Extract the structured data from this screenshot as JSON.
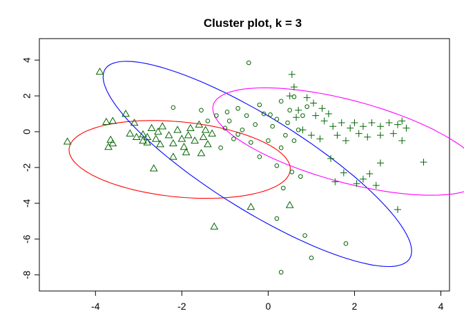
{
  "chart_data": {
    "type": "scatter",
    "title": "Cluster plot, k = 3",
    "xlabel": "",
    "ylabel": "",
    "xlim": [
      -5.3,
      4.2
    ],
    "ylim": [
      -8.9,
      5.2
    ],
    "xticks": [
      -4,
      -2,
      0,
      2,
      4
    ],
    "yticks": [
      4,
      2,
      0,
      -2,
      -4,
      -6,
      -8
    ],
    "grid": false,
    "legend": "none",
    "point_color": "#006400",
    "ellipses": [
      {
        "cluster": 1,
        "color": "#ff0000",
        "center": [
          -2.05,
          -1.55
        ],
        "semi_major": 2.7,
        "semi_minor": 2.0,
        "angle_deg": -28
      },
      {
        "cluster": 2,
        "color": "#0000ff",
        "center": [
          -0.25,
          -1.8
        ],
        "semi_major": 6.55,
        "semi_minor": 1.65,
        "angle_deg": -60
      },
      {
        "cluster": 3,
        "color": "#ff00ff",
        "center": [
          1.85,
          -0.55
        ],
        "semi_major": 3.9,
        "semi_minor": 1.9,
        "angle_deg": -43
      }
    ],
    "series": [
      {
        "marker": "triangle",
        "points": [
          [
            -3.9,
            3.35
          ],
          [
            -4.65,
            -0.55
          ],
          [
            -3.75,
            0.55
          ],
          [
            -3.6,
            0.6
          ],
          [
            -3.3,
            1.0
          ],
          [
            -3.1,
            0.5
          ],
          [
            -3.65,
            -0.45
          ],
          [
            -3.7,
            -0.85
          ],
          [
            -3.6,
            -0.65
          ],
          [
            -3.2,
            -0.1
          ],
          [
            -2.9,
            -0.5
          ],
          [
            -2.8,
            -0.3
          ],
          [
            -2.9,
            -0.15
          ],
          [
            -2.7,
            0.2
          ],
          [
            -2.6,
            -0.4
          ],
          [
            -2.5,
            -0.7
          ],
          [
            -2.45,
            0.3
          ],
          [
            -2.3,
            -0.2
          ],
          [
            -2.2,
            -0.65
          ],
          [
            -2.1,
            0.1
          ],
          [
            -2.0,
            -0.4
          ],
          [
            -1.95,
            -0.85
          ],
          [
            -1.85,
            -0.2
          ],
          [
            -1.8,
            0.2
          ],
          [
            -1.7,
            -0.5
          ],
          [
            -1.6,
            0.4
          ],
          [
            -1.55,
            -1.2
          ],
          [
            -1.5,
            -0.3
          ],
          [
            -1.45,
            0.1
          ],
          [
            -1.4,
            -0.7
          ],
          [
            -1.3,
            -0.1
          ],
          [
            -1.25,
            -5.3
          ],
          [
            -0.4,
            -4.2
          ],
          [
            0.5,
            -4.1
          ],
          [
            -2.65,
            -2.05
          ],
          [
            -2.2,
            -1.4
          ],
          [
            -1.9,
            -1.15
          ],
          [
            -2.8,
            -0.6
          ],
          [
            -3.05,
            -0.3
          ],
          [
            -2.55,
            0.0
          ]
        ]
      },
      {
        "marker": "circle",
        "points": [
          [
            -0.45,
            3.85
          ],
          [
            -2.2,
            1.35
          ],
          [
            -1.55,
            1.2
          ],
          [
            -0.7,
            1.3
          ],
          [
            -0.2,
            1.5
          ],
          [
            0.3,
            1.7
          ],
          [
            0.6,
            1.95
          ],
          [
            -1.2,
            0.9
          ],
          [
            -0.9,
            0.6
          ],
          [
            -0.5,
            0.9
          ],
          [
            -0.1,
            1.0
          ],
          [
            0.2,
            0.7
          ],
          [
            0.5,
            1.2
          ],
          [
            0.8,
            0.9
          ],
          [
            -1.0,
            0.2
          ],
          [
            -0.6,
            0.1
          ],
          [
            -0.3,
            0.4
          ],
          [
            0.1,
            0.3
          ],
          [
            0.4,
            -0.2
          ],
          [
            0.7,
            0.1
          ],
          [
            -0.8,
            -0.4
          ],
          [
            -0.4,
            -0.6
          ],
          [
            0.0,
            -0.5
          ],
          [
            0.3,
            -0.9
          ],
          [
            0.6,
            -0.5
          ],
          [
            -1.1,
            -0.9
          ],
          [
            -0.2,
            -1.4
          ],
          [
            0.2,
            -1.9
          ],
          [
            0.35,
            -3.15
          ],
          [
            0.55,
            -2.25
          ],
          [
            0.75,
            -2.5
          ],
          [
            0.2,
            -4.85
          ],
          [
            0.85,
            -5.8
          ],
          [
            1.0,
            -7.05
          ],
          [
            1.8,
            -6.25
          ],
          [
            0.3,
            -7.85
          ],
          [
            -1.4,
            0.6
          ],
          [
            -0.95,
            1.1
          ],
          [
            0.9,
            1.4
          ],
          [
            0.45,
            0.5
          ],
          [
            -0.7,
            -0.15
          ],
          [
            0.05,
            0.95
          ]
        ]
      },
      {
        "marker": "plus",
        "points": [
          [
            0.55,
            3.2
          ],
          [
            0.6,
            2.5
          ],
          [
            0.5,
            2.0
          ],
          [
            0.9,
            1.9
          ],
          [
            1.05,
            1.6
          ],
          [
            1.4,
            1.0
          ],
          [
            0.7,
            1.2
          ],
          [
            1.1,
            0.9
          ],
          [
            1.3,
            0.6
          ],
          [
            1.5,
            0.3
          ],
          [
            1.7,
            0.5
          ],
          [
            1.9,
            0.2
          ],
          [
            2.0,
            0.5
          ],
          [
            2.2,
            0.3
          ],
          [
            2.4,
            0.5
          ],
          [
            2.6,
            0.3
          ],
          [
            2.8,
            0.5
          ],
          [
            3.0,
            0.4
          ],
          [
            3.1,
            0.6
          ],
          [
            3.2,
            0.2
          ],
          [
            0.8,
            0.1
          ],
          [
            1.0,
            -0.2
          ],
          [
            1.2,
            -0.4
          ],
          [
            1.6,
            -0.2
          ],
          [
            1.8,
            -0.5
          ],
          [
            2.1,
            -0.1
          ],
          [
            2.3,
            -0.3
          ],
          [
            2.6,
            -0.2
          ],
          [
            2.9,
            -0.1
          ],
          [
            3.1,
            -0.5
          ],
          [
            1.45,
            -1.5
          ],
          [
            1.55,
            -2.8
          ],
          [
            1.75,
            -2.3
          ],
          [
            2.05,
            -2.9
          ],
          [
            2.2,
            -2.65
          ],
          [
            2.35,
            -2.35
          ],
          [
            2.5,
            -3.0
          ],
          [
            2.6,
            -1.75
          ],
          [
            3.0,
            -4.35
          ],
          [
            3.6,
            -1.7
          ],
          [
            0.65,
            0.8
          ],
          [
            1.25,
            1.3
          ]
        ]
      }
    ]
  }
}
